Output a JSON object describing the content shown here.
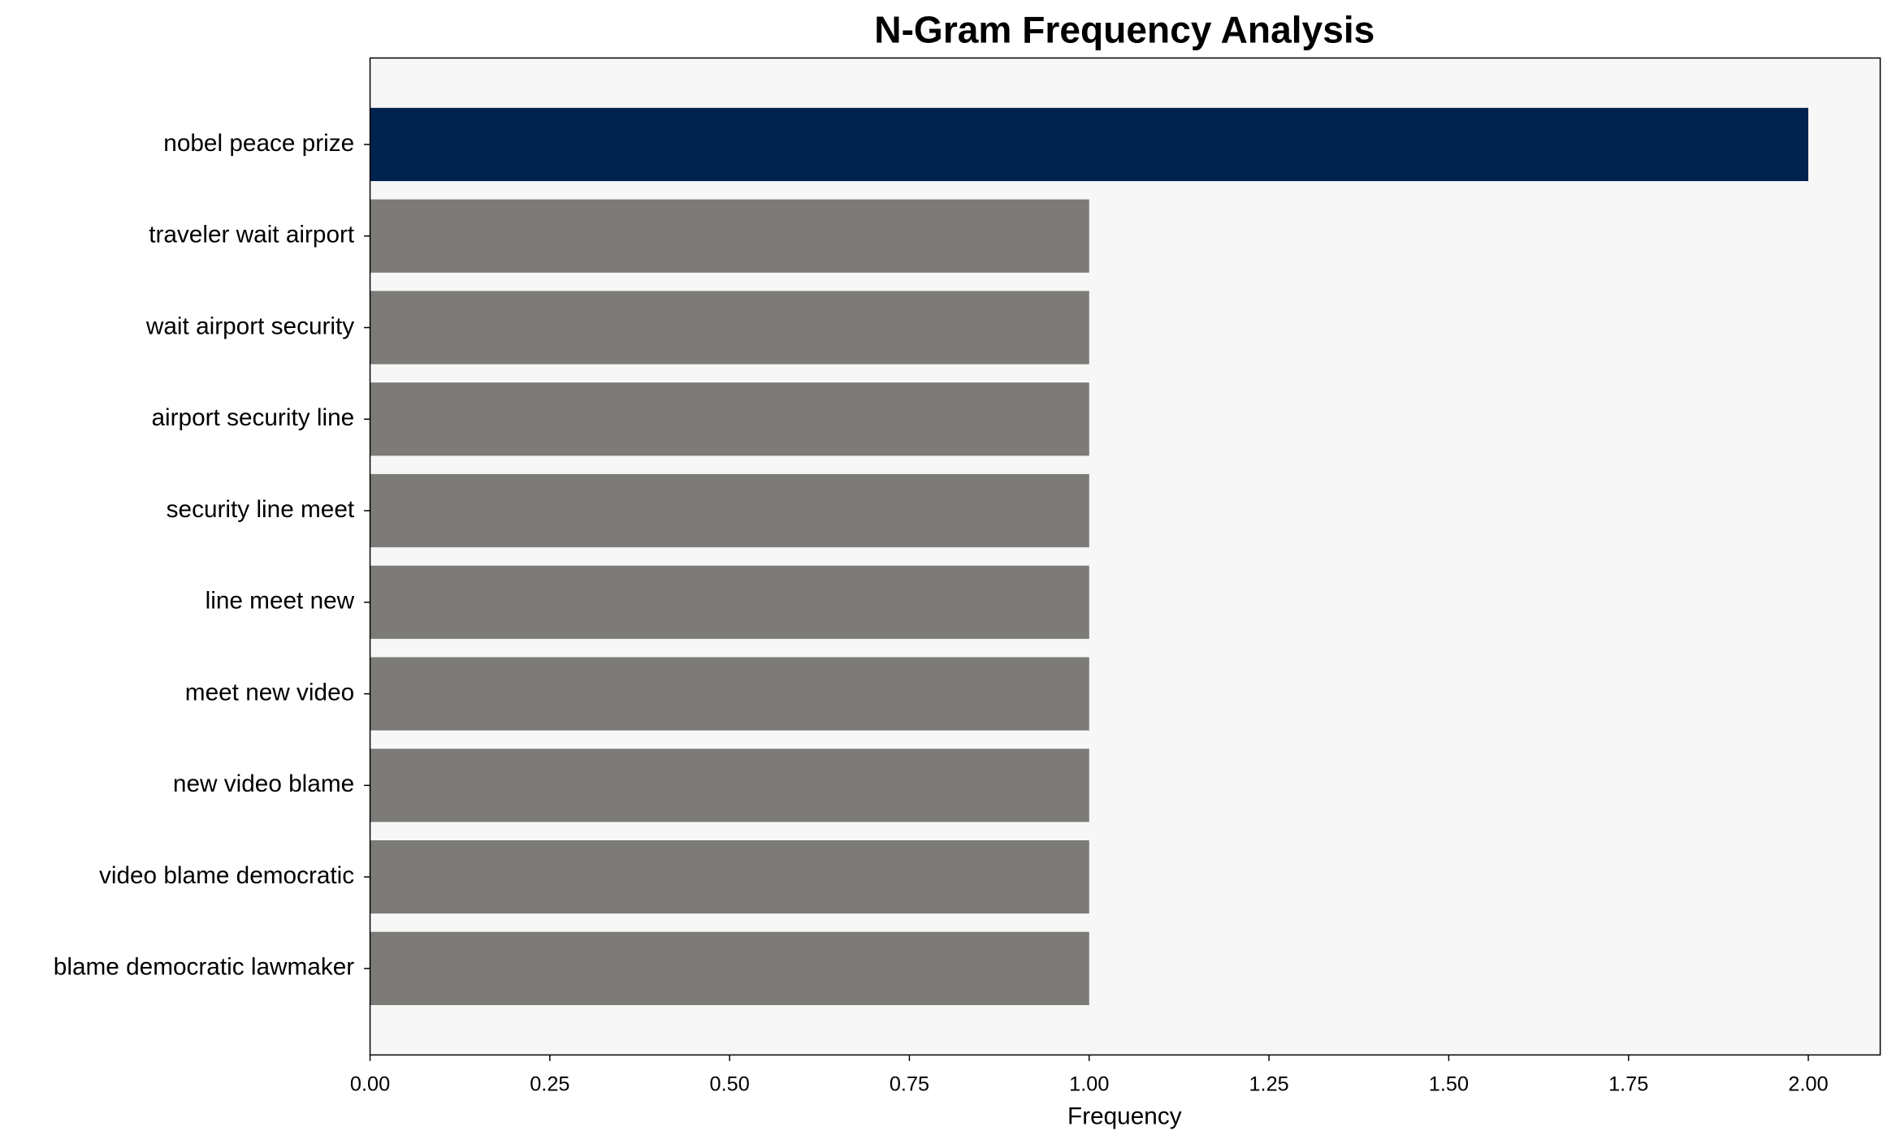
{
  "chart_data": {
    "type": "barh",
    "title": "N-Gram Frequency Analysis",
    "xlabel": "Frequency",
    "categories": [
      "nobel peace prize",
      "traveler wait airport",
      "wait airport security",
      "airport security line",
      "security line meet",
      "line meet new",
      "meet new video",
      "new video blame",
      "video blame democratic",
      "blame democratic lawmaker"
    ],
    "values": [
      2,
      1,
      1,
      1,
      1,
      1,
      1,
      1,
      1,
      1
    ],
    "colors": [
      "#00224e",
      "#7c7b78",
      "#7c7b78",
      "#7c7b78",
      "#7c7b78",
      "#7c7b78",
      "#7c7b78",
      "#7c7b78",
      "#7c7b78",
      "#7c7b78"
    ],
    "xlim": [
      0,
      2.1
    ],
    "xticks": [
      {
        "value": 0,
        "label": "0.00"
      },
      {
        "value": 0.25,
        "label": "0.25"
      },
      {
        "value": 0.5,
        "label": "0.50"
      },
      {
        "value": 0.75,
        "label": "0.75"
      },
      {
        "value": 1,
        "label": "1.00"
      },
      {
        "value": 1.25,
        "label": "1.25"
      },
      {
        "value": 1.5,
        "label": "1.50"
      },
      {
        "value": 1.75,
        "label": "1.75"
      },
      {
        "value": 2,
        "label": "2.00"
      }
    ],
    "grid": false,
    "background": "#f7f7f7"
  }
}
